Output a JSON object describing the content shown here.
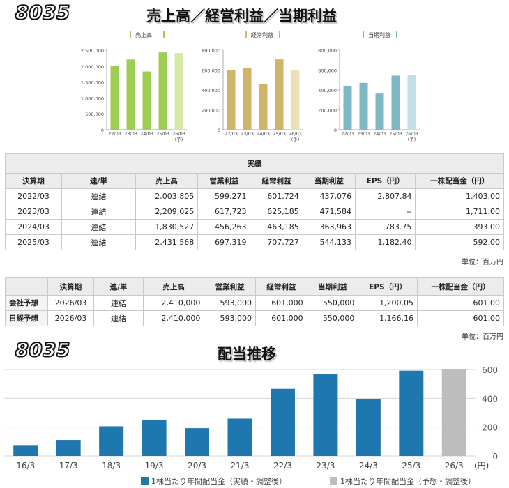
{
  "header": {
    "code": "8035",
    "title": "売上高／経営利益／当期利益"
  },
  "mini_charts_meta": {
    "year_labels": [
      "22/03",
      "23/03",
      "24/03",
      "25/03",
      "26/03"
    ],
    "forecast_mark": "(予)"
  },
  "colors": {
    "sales": "#9cce52",
    "sales_fc": "#d6eaa8",
    "ordinary": "#cfb56a",
    "ordinary_fc": "#ece0bb",
    "net": "#7eb8c4",
    "net_fc": "#c2dfe5",
    "dividend": "#1f77b0",
    "dividend_fc": "#bdbdbd"
  },
  "chart_data": [
    {
      "type": "bar",
      "title": "売上高",
      "legend": "売上高",
      "categories": [
        "22/03",
        "23/03",
        "24/03",
        "25/03",
        "26/03"
      ],
      "values": [
        2003805,
        2209025,
        1830527,
        2431568,
        2410000
      ],
      "forecast_index": 4,
      "ylim": [
        0,
        2500000
      ],
      "yticks": [
        "0",
        "500,000",
        "1,000,000",
        "1,500,000",
        "2,000,000",
        "2,500,000"
      ]
    },
    {
      "type": "bar",
      "title": "経常利益",
      "legend": "経常利益",
      "categories": [
        "22/03",
        "23/03",
        "24/03",
        "25/03",
        "26/03"
      ],
      "values": [
        601724,
        625185,
        463185,
        707727,
        601000
      ],
      "forecast_index": 4,
      "ylim": [
        0,
        800000
      ],
      "yticks": [
        "0",
        "200,000",
        "400,000",
        "600,000",
        "800,000"
      ]
    },
    {
      "type": "bar",
      "title": "当期利益",
      "legend": "当期利益",
      "categories": [
        "22/03",
        "23/03",
        "24/03",
        "25/03",
        "26/03"
      ],
      "values": [
        437076,
        471584,
        363963,
        544133,
        550000
      ],
      "forecast_index": 4,
      "ylim": [
        0,
        800000
      ],
      "yticks": [
        "0",
        "200,000",
        "400,000",
        "600,000",
        "800,000"
      ]
    },
    {
      "type": "bar",
      "title": "配当推移",
      "categories": [
        "16/3",
        "17/3",
        "18/3",
        "19/3",
        "20/3",
        "21/3",
        "22/3",
        "23/3",
        "24/3",
        "25/3",
        "26/3"
      ],
      "values": [
        71,
        111,
        206,
        250,
        193,
        259,
        466,
        570,
        393,
        592,
        601
      ],
      "forecast_index": 10,
      "ylim": [
        0,
        600
      ],
      "yticks": [
        "0",
        "200",
        "400",
        "600"
      ],
      "unit": "(円)",
      "legend": [
        "1株当たり年間配当金（実績・調整後）",
        "1株当たり年間配当金（予想・調整後）"
      ]
    }
  ],
  "actual_table": {
    "caption": "実績",
    "headers": [
      "決算期",
      "連/単",
      "売上高",
      "営業利益",
      "経常利益",
      "当期利益",
      "EPS（円）",
      "一株配当金（円）"
    ],
    "rows": [
      [
        "2022/03",
        "連結",
        "2,003,805",
        "599,271",
        "601,724",
        "437,076",
        "2,807.84",
        "1,403.00"
      ],
      [
        "2023/03",
        "連結",
        "2,209,025",
        "617,723",
        "625,185",
        "471,584",
        "--",
        "1,711.00"
      ],
      [
        "2024/03",
        "連結",
        "1,830,527",
        "456,263",
        "463,185",
        "363,963",
        "783.75",
        "393.00"
      ],
      [
        "2025/03",
        "連結",
        "2,431,568",
        "697,319",
        "707,727",
        "544,133",
        "1,182.40",
        "592.00"
      ]
    ],
    "unit": "単位：百万円"
  },
  "forecast_table": {
    "headers": [
      "",
      "決算期",
      "連/単",
      "売上高",
      "営業利益",
      "経常利益",
      "当期利益",
      "EPS（円）",
      "一株配当金（円）"
    ],
    "rows": [
      [
        "会社予想",
        "2026/03",
        "連結",
        "2,410,000",
        "593,000",
        "601,000",
        "550,000",
        "1,200.05",
        "601.00"
      ],
      [
        "日経予想",
        "2026/03",
        "連結",
        "2,410,000",
        "593,000",
        "601,000",
        "550,000",
        "1,166.16",
        "601.00"
      ]
    ],
    "unit": "単位：百万円"
  },
  "dividend_header": {
    "code": "8035",
    "title": "配当推移"
  }
}
